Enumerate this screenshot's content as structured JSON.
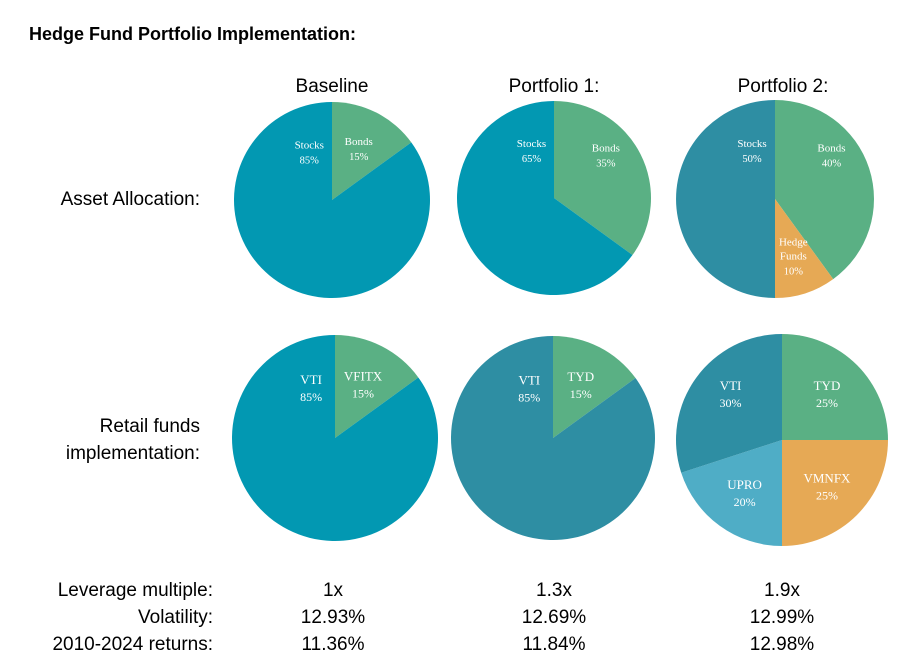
{
  "title": "Hedge Fund Portfolio Implementation:",
  "columns": [
    "Baseline",
    "Portfolio 1:",
    "Portfolio 2:"
  ],
  "row_labels": {
    "asset_allocation": "Asset Allocation:",
    "retail_line1": "Retail funds",
    "retail_line2": "implementation:"
  },
  "metrics": [
    {
      "label": "Leverage multiple:",
      "values": [
        "1x",
        "1.3x",
        "1.9x"
      ]
    },
    {
      "label": "Volatility:",
      "values": [
        "12.93%",
        "12.69%",
        "12.99%"
      ]
    },
    {
      "label": "2010-2024 returns:",
      "values": [
        "11.36%",
        "11.84%",
        "12.98%"
      ]
    }
  ],
  "colors": {
    "teal": "#0298b2",
    "dark_teal": "#2e8ea3",
    "green": "#5ab084",
    "orange": "#e6a955",
    "light_teal": "#4fadc6"
  },
  "chart_data": [
    {
      "type": "pie",
      "row": "Asset Allocation:",
      "column": "Baseline",
      "slices": [
        {
          "label": "Bonds",
          "pct_text": "15%",
          "value": 15,
          "color": "#5ab084"
        },
        {
          "label": "Stocks",
          "pct_text": "85%",
          "value": 85,
          "color": "#0298b2"
        }
      ]
    },
    {
      "type": "pie",
      "row": "Asset Allocation:",
      "column": "Portfolio 1:",
      "slices": [
        {
          "label": "Bonds",
          "pct_text": "35%",
          "value": 35,
          "color": "#5ab084"
        },
        {
          "label": "Stocks",
          "pct_text": "65%",
          "value": 65,
          "color": "#0298b2"
        }
      ]
    },
    {
      "type": "pie",
      "row": "Asset Allocation:",
      "column": "Portfolio 2:",
      "slices": [
        {
          "label": "Bonds",
          "pct_text": "40%",
          "value": 40,
          "color": "#5ab084"
        },
        {
          "label": "Hedge Funds",
          "pct_text": "10%",
          "value": 10,
          "color": "#e6a955"
        },
        {
          "label": "Stocks",
          "pct_text": "50%",
          "value": 50,
          "color": "#2e8ea3"
        }
      ]
    },
    {
      "type": "pie",
      "row": "Retail funds implementation:",
      "column": "Baseline",
      "slices": [
        {
          "label": "VFITX",
          "pct_text": "15%",
          "value": 15,
          "color": "#5ab084"
        },
        {
          "label": "VTI",
          "pct_text": "85%",
          "value": 85,
          "color": "#0298b2"
        }
      ]
    },
    {
      "type": "pie",
      "row": "Retail funds implementation:",
      "column": "Portfolio 1:",
      "slices": [
        {
          "label": "TYD",
          "pct_text": "15%",
          "value": 15,
          "color": "#5ab084"
        },
        {
          "label": "VTI",
          "pct_text": "85%",
          "value": 85,
          "color": "#2e8ea3"
        }
      ]
    },
    {
      "type": "pie",
      "row": "Retail funds implementation:",
      "column": "Portfolio 2:",
      "slices": [
        {
          "label": "TYD",
          "pct_text": "25%",
          "value": 25,
          "color": "#5ab084"
        },
        {
          "label": "VMNFX",
          "pct_text": "25%",
          "value": 25,
          "color": "#e6a955"
        },
        {
          "label": "UPRO",
          "pct_text": "20%",
          "value": 20,
          "color": "#4fadc6"
        },
        {
          "label": "VTI",
          "pct_text": "30%",
          "value": 30,
          "color": "#2e8ea3"
        }
      ]
    }
  ]
}
